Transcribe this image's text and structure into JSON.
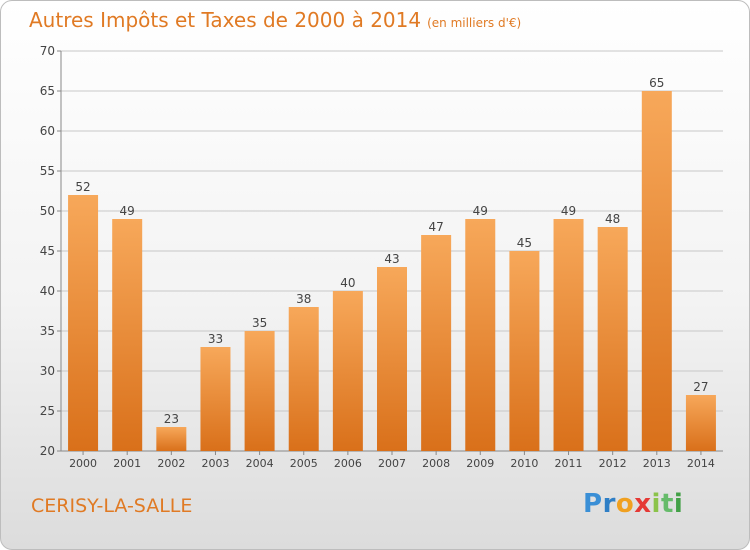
{
  "header": {
    "title": "Autres Impôts et Taxes de 2000 à 2014",
    "subtitle": "(en milliers d'€)"
  },
  "footer": {
    "commune": "CERISY-LA-SALLE",
    "logo": {
      "letters": [
        "P",
        "r",
        "o",
        "x",
        "i",
        "t",
        "i"
      ],
      "text": "Proxiti"
    }
  },
  "colors": {
    "accent": "#e07a24",
    "bar_top": "#f7a85a",
    "bar_bottom": "#d9701a",
    "grid": "#c8c8c8"
  },
  "chart_data": {
    "type": "bar",
    "title": "Autres Impôts et Taxes de 2000 à 2014",
    "subtitle": "(en milliers d'€)",
    "xlabel": "",
    "ylabel": "",
    "categories": [
      "2000",
      "2001",
      "2002",
      "2003",
      "2004",
      "2005",
      "2006",
      "2007",
      "2008",
      "2009",
      "2010",
      "2011",
      "2012",
      "2013",
      "2014"
    ],
    "values": [
      52,
      49,
      23,
      33,
      35,
      38,
      40,
      43,
      47,
      49,
      45,
      49,
      48,
      65,
      27
    ],
    "ylim": [
      20,
      70
    ],
    "yticks": [
      20,
      25,
      30,
      35,
      40,
      45,
      50,
      55,
      60,
      65,
      70
    ],
    "grid": true,
    "data_labels": true
  }
}
